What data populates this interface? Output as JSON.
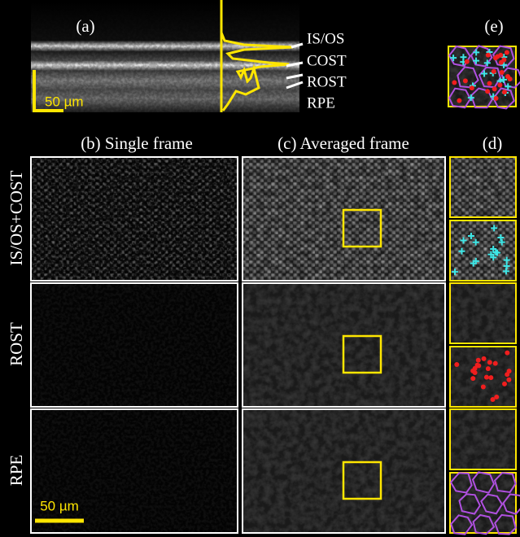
{
  "panel_a": {
    "label": "(a)",
    "scale_bar": "50 µm",
    "layers": [
      "IS/OS",
      "COST",
      "ROST",
      "RPE"
    ]
  },
  "panel_e": {
    "label": "(e)"
  },
  "columns": [
    "(b) Single frame",
    "(c) Averaged frame",
    "(d)"
  ],
  "rows": [
    "IS/OS+COST",
    "ROST",
    "RPE"
  ],
  "scale_bar": "50 µm"
}
